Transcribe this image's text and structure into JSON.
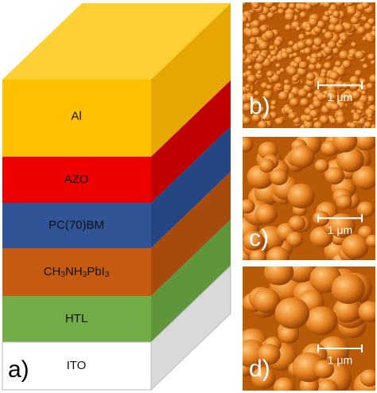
{
  "panel_a": {
    "label": "a)",
    "layers": [
      {
        "label": "Al"
      },
      {
        "label": "AZO"
      },
      {
        "label": "PC(70)BM"
      },
      {
        "label": "CH3NH3PbI3"
      },
      {
        "label": "HTL"
      },
      {
        "label": "ITO"
      }
    ]
  },
  "afm_images": [
    {
      "label": "b)",
      "scale_bar": "1 μm"
    },
    {
      "label": "c)",
      "scale_bar": "1 μm"
    },
    {
      "label": "d)",
      "scale_bar": "1 μm"
    }
  ]
}
